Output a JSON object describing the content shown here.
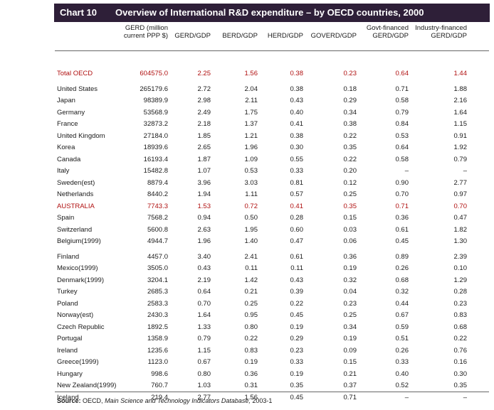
{
  "chart": {
    "number": "Chart 10",
    "title": "Overview of International R&D expenditure – by OECD countries, 2000"
  },
  "columns": [
    [
      "GERD (million",
      "current PPP $)"
    ],
    [
      "",
      "GERD/GDP"
    ],
    [
      "",
      "BERD/GDP"
    ],
    [
      "",
      "HERD/GDP"
    ],
    [
      "",
      "GOVERD/GDP"
    ],
    [
      "Govt-financed",
      "GERD/GDP"
    ],
    [
      "Industry-financed",
      "GERD/GDP"
    ]
  ],
  "rows": [
    {
      "country": "Total OECD",
      "values": [
        "604575.0",
        "2.25",
        "1.56",
        "0.38",
        "0.23",
        "0.64",
        "1.44"
      ],
      "highlight": true
    },
    {
      "country": "United States",
      "values": [
        "265179.6",
        "2.72",
        "2.04",
        "0.38",
        "0.18",
        "0.71",
        "1.88"
      ]
    },
    {
      "country": "Japan",
      "values": [
        "98389.9",
        "2.98",
        "2.11",
        "0.43",
        "0.29",
        "0.58",
        "2.16"
      ]
    },
    {
      "country": "Germany",
      "values": [
        "53568.9",
        "2.49",
        "1.75",
        "0.40",
        "0.34",
        "0.79",
        "1.64"
      ]
    },
    {
      "country": "France",
      "values": [
        "32873.2",
        "2.18",
        "1.37",
        "0.41",
        "0.38",
        "0.84",
        "1.15"
      ]
    },
    {
      "country": "United Kingdom",
      "values": [
        "27184.0",
        "1.85",
        "1.21",
        "0.38",
        "0.22",
        "0.53",
        "0.91"
      ]
    },
    {
      "country": "Korea",
      "values": [
        "18939.6",
        "2.65",
        "1.96",
        "0.30",
        "0.35",
        "0.64",
        "1.92"
      ]
    },
    {
      "country": "Canada",
      "values": [
        "16193.4",
        "1.87",
        "1.09",
        "0.55",
        "0.22",
        "0.58",
        "0.79"
      ]
    },
    {
      "country": "Italy",
      "values": [
        "15482.8",
        "1.07",
        "0.53",
        "0.33",
        "0.20",
        "–",
        "–"
      ]
    },
    {
      "country": "Sweden(est)",
      "values": [
        "8879.4",
        "3.96",
        "3.03",
        "0.81",
        "0.12",
        "0.90",
        "2.77"
      ]
    },
    {
      "country": "Netherlands",
      "values": [
        "8440.2",
        "1.94",
        "1.11",
        "0.57",
        "0.25",
        "0.70",
        "0.97"
      ]
    },
    {
      "country": "AUSTRALIA",
      "values": [
        "7743.3",
        "1.53",
        "0.72",
        "0.41",
        "0.35",
        "0.71",
        "0.70"
      ],
      "highlight": true
    },
    {
      "country": "Spain",
      "values": [
        "7568.2",
        "0.94",
        "0.50",
        "0.28",
        "0.15",
        "0.36",
        "0.47"
      ]
    },
    {
      "country": "Switzerland",
      "values": [
        "5600.8",
        "2.63",
        "1.95",
        "0.60",
        "0.03",
        "0.61",
        "1.82"
      ]
    },
    {
      "country": "Belgium(1999)",
      "values": [
        "4944.7",
        "1.96",
        "1.40",
        "0.47",
        "0.06",
        "0.45",
        "1.30"
      ]
    },
    {
      "country": "Finland",
      "values": [
        "4457.0",
        "3.40",
        "2.41",
        "0.61",
        "0.36",
        "0.89",
        "2.39"
      ]
    },
    {
      "country": "Mexico(1999)",
      "values": [
        "3505.0",
        "0.43",
        "0.11",
        "0.11",
        "0.19",
        "0.26",
        "0.10"
      ]
    },
    {
      "country": "Denmark(1999)",
      "values": [
        "3204.1",
        "2.19",
        "1.42",
        "0.43",
        "0.32",
        "0.68",
        "1.29"
      ]
    },
    {
      "country": "Turkey",
      "values": [
        "2685.3",
        "0.64",
        "0.21",
        "0.39",
        "0.04",
        "0.32",
        "0.28"
      ]
    },
    {
      "country": "Poland",
      "values": [
        "2583.3",
        "0.70",
        "0.25",
        "0.22",
        "0.23",
        "0.44",
        "0.23"
      ]
    },
    {
      "country": "Norway(est)",
      "values": [
        "2430.3",
        "1.64",
        "0.95",
        "0.45",
        "0.25",
        "0.67",
        "0.83"
      ]
    },
    {
      "country": "Czech Republic",
      "values": [
        "1892.5",
        "1.33",
        "0.80",
        "0.19",
        "0.34",
        "0.59",
        "0.68"
      ]
    },
    {
      "country": "Portugal",
      "values": [
        "1358.9",
        "0.79",
        "0.22",
        "0.29",
        "0.19",
        "0.51",
        "0.22"
      ]
    },
    {
      "country": "Ireland",
      "values": [
        "1235.6",
        "1.15",
        "0.83",
        "0.23",
        "0.09",
        "0.26",
        "0.76"
      ]
    },
    {
      "country": "Greece(1999)",
      "values": [
        "1123.0",
        "0.67",
        "0.19",
        "0.33",
        "0.15",
        "0.33",
        "0.16"
      ]
    },
    {
      "country": "Hungary",
      "values": [
        "998.6",
        "0.80",
        "0.36",
        "0.19",
        "0.21",
        "0.40",
        "0.30"
      ]
    },
    {
      "country": "New Zealand(1999)",
      "values": [
        "760.7",
        "1.03",
        "0.31",
        "0.35",
        "0.37",
        "0.52",
        "0.35"
      ]
    },
    {
      "country": "Iceland",
      "values": [
        "219.4",
        "2.77",
        "1.56",
        "0.45",
        "0.71",
        "–",
        "–"
      ]
    }
  ],
  "source": {
    "label": "Source:",
    "prefix": "OECD,",
    "publication": "Main Science and Technology Indicators Database,",
    "suffix": "2003-1"
  },
  "colors": {
    "banner": "#2e1f38",
    "highlight": "#b01010",
    "rule": "#666666"
  }
}
